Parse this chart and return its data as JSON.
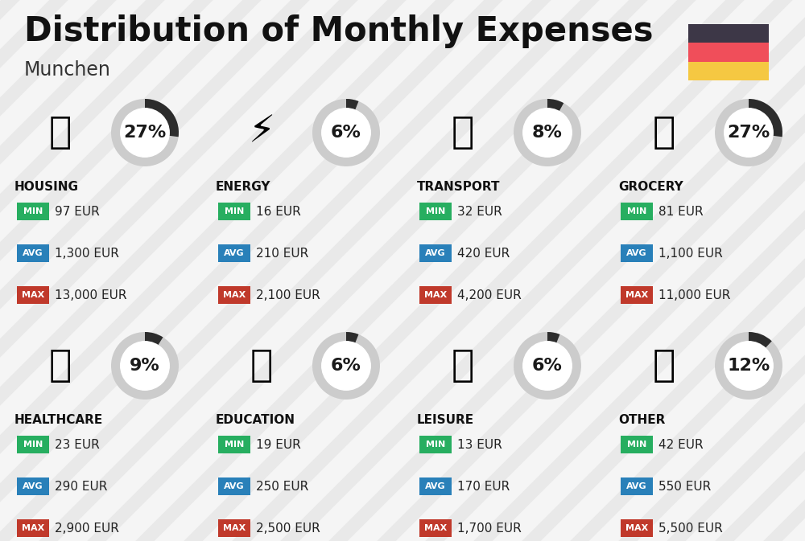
{
  "title": "Distribution of Monthly Expenses",
  "subtitle": "Munchen",
  "background_color": "#f5f5f5",
  "categories": [
    {
      "name": "HOUSING",
      "percent": 27,
      "min": "97 EUR",
      "avg": "1,300 EUR",
      "max": "13,000 EUR",
      "col": 0,
      "row": 0
    },
    {
      "name": "ENERGY",
      "percent": 6,
      "min": "16 EUR",
      "avg": "210 EUR",
      "max": "2,100 EUR",
      "col": 1,
      "row": 0
    },
    {
      "name": "TRANSPORT",
      "percent": 8,
      "min": "32 EUR",
      "avg": "420 EUR",
      "max": "4,200 EUR",
      "col": 2,
      "row": 0
    },
    {
      "name": "GROCERY",
      "percent": 27,
      "min": "81 EUR",
      "avg": "1,100 EUR",
      "max": "11,000 EUR",
      "col": 3,
      "row": 0
    },
    {
      "name": "HEALTHCARE",
      "percent": 9,
      "min": "23 EUR",
      "avg": "290 EUR",
      "max": "2,900 EUR",
      "col": 0,
      "row": 1
    },
    {
      "name": "EDUCATION",
      "percent": 6,
      "min": "19 EUR",
      "avg": "250 EUR",
      "max": "2,500 EUR",
      "col": 1,
      "row": 1
    },
    {
      "name": "LEISURE",
      "percent": 6,
      "min": "13 EUR",
      "avg": "170 EUR",
      "max": "1,700 EUR",
      "col": 2,
      "row": 1
    },
    {
      "name": "OTHER",
      "percent": 12,
      "min": "42 EUR",
      "avg": "550 EUR",
      "max": "5,500 EUR",
      "col": 3,
      "row": 1
    }
  ],
  "min_color": "#27ae60",
  "avg_color": "#2980b9",
  "max_color": "#c0392b",
  "arc_bg_color": "#cccccc",
  "arc_fill_color": "#2c2c2c",
  "flag_colors": [
    "#3d3747",
    "#f04e5a",
    "#f5c842"
  ],
  "title_fontsize": 30,
  "subtitle_fontsize": 17,
  "category_fontsize": 11,
  "percent_fontsize": 16,
  "value_fontsize": 11,
  "label_fontsize": 8,
  "stripe_color": "#e8e8e8",
  "stripe_alpha": 0.9
}
